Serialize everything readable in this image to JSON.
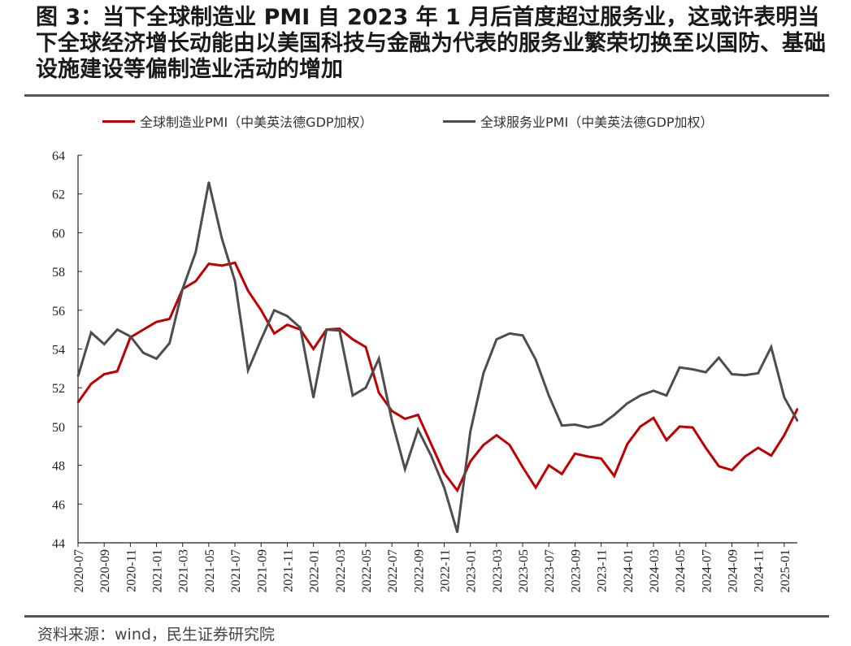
{
  "title": "图 3：当下全球制造业 PMI 自 2023 年 1 月后首度超过服务业，这或许表明当下全球经济增长动能由以美国科技与金融为代表的服务业繁荣切换至以国防、基础设施建设等偏制造业活动的增加",
  "source": "资料来源：wind，民生证券研究院",
  "chart_data": {
    "type": "line",
    "title": "",
    "xlabel": "",
    "ylabel": "",
    "ylim": [
      44,
      64
    ],
    "yticks": [
      "44",
      "46",
      "48",
      "50",
      "52",
      "54",
      "56",
      "58",
      "60",
      "62",
      "64"
    ],
    "xtick_labels": [
      "2020-07",
      "2020-09",
      "2020-11",
      "2021-01",
      "2021-03",
      "2021-05",
      "2021-07",
      "2021-09",
      "2021-11",
      "2022-01",
      "2022-03",
      "2022-05",
      "2022-07",
      "2022-09",
      "2022-11",
      "2023-01",
      "2023-03",
      "2023-05",
      "2023-07",
      "2023-09",
      "2023-11",
      "2024-01",
      "2024-03",
      "2024-05",
      "2024-07",
      "2024-09",
      "2024-11",
      "2025-01"
    ],
    "x_start": "2020-07",
    "x_end": "2025-02",
    "grid": false,
    "legend_position": "top",
    "series": [
      {
        "name": "全球制造业PMI（中美英法德GDP加权）",
        "color": "#c00000",
        "values": [
          51.25,
          52.2,
          52.7,
          52.85,
          54.6,
          55.0,
          55.4,
          55.55,
          57.1,
          57.5,
          58.4,
          58.3,
          58.45,
          57.0,
          56.0,
          54.8,
          55.25,
          55.0,
          54.0,
          55.0,
          55.05,
          54.5,
          54.1,
          51.75,
          50.8,
          50.4,
          50.6,
          49.1,
          47.6,
          46.7,
          48.2,
          49.05,
          49.55,
          49.05,
          47.9,
          46.85,
          48.0,
          47.55,
          48.6,
          48.45,
          48.35,
          47.45,
          49.1,
          50.0,
          50.45,
          49.3,
          50.0,
          49.95,
          48.9,
          47.95,
          47.75,
          48.45,
          48.9,
          48.5,
          49.55,
          50.9
        ]
      },
      {
        "name": "全球服务业PMI（中美英法德GDP加权）",
        "color": "#4d4d4d",
        "values": [
          52.6,
          54.85,
          54.25,
          55.0,
          54.65,
          53.8,
          53.5,
          54.3,
          57.1,
          59.0,
          62.6,
          59.7,
          57.5,
          52.9,
          54.5,
          56.0,
          55.7,
          55.1,
          51.5,
          55.0,
          54.95,
          51.6,
          52.0,
          53.5,
          50.3,
          47.8,
          49.85,
          48.5,
          46.85,
          44.55,
          49.75,
          52.75,
          54.5,
          54.8,
          54.7,
          53.45,
          51.6,
          50.05,
          50.1,
          49.95,
          50.1,
          50.6,
          51.2,
          51.6,
          51.85,
          51.6,
          53.05,
          52.95,
          52.8,
          53.55,
          52.7,
          52.65,
          52.75,
          54.1,
          51.5,
          50.3
        ]
      }
    ]
  }
}
